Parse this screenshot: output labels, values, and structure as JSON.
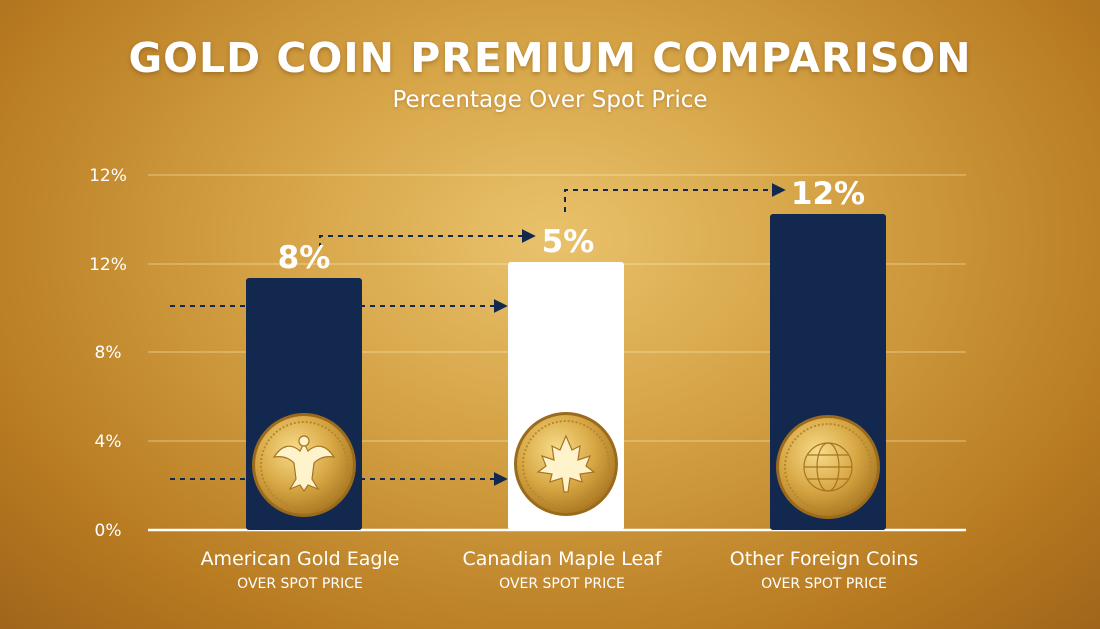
{
  "chart_data": {
    "type": "bar",
    "title": "GOLD COIN PREMIUM COMPARISON",
    "subtitle": "Percentage Over Spot Price",
    "categories": [
      "American Gold Eagle",
      "Canadian Maple Leaf",
      "Other Foreign Coins"
    ],
    "category_sublabels": [
      "OVER SPOT PRICE",
      "OVER SPOT PRICE",
      "OVER SPOT PRICE"
    ],
    "values": [
      8,
      5,
      12
    ],
    "data_labels": [
      "8%",
      "5%",
      "12%"
    ],
    "bar_colors": [
      "#13284e",
      "#ffffff",
      "#13284e"
    ],
    "coin_icons": [
      "eagle-icon",
      "maple-leaf-icon",
      "globe-icon"
    ],
    "y_tick_labels": [
      "0%",
      "4%",
      "8%",
      "12%",
      "12%"
    ],
    "grid": true,
    "colors": {
      "navy": "#13284e",
      "gold": "#d4a446"
    }
  }
}
